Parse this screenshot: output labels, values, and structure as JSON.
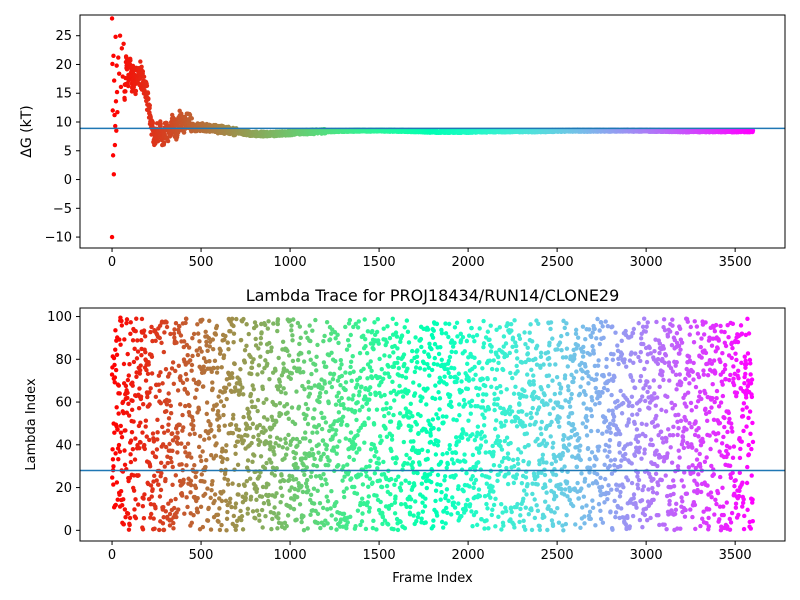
{
  "chart_data": [
    {
      "type": "scatter",
      "title": "",
      "xlabel": "",
      "ylabel": "ΔG (kT)",
      "xlim": [
        -180,
        3780
      ],
      "ylim": [
        -11.9,
        28.6
      ],
      "xticks": [
        "0",
        "500",
        "1000",
        "1500",
        "2000",
        "2500",
        "3000",
        "3500"
      ],
      "yticks": [
        "−10",
        "−5",
        "0",
        "5",
        "10",
        "15",
        "20",
        "25"
      ],
      "hline": 8.9,
      "hline_color": "#1f77b4",
      "colormap": "rainbow",
      "grid": false,
      "series": [
        {
          "points": [
            [
              0,
              28.0
            ],
            [
              0,
              -10.0
            ],
            [
              2,
              20.1
            ],
            [
              4,
              12.0
            ],
            [
              6,
              4.2
            ],
            [
              8,
              21.5
            ],
            [
              10,
              0.9
            ],
            [
              12,
              17.2
            ],
            [
              14,
              11.2
            ],
            [
              16,
              6.0
            ],
            [
              18,
              9.3
            ],
            [
              20,
              24.8
            ],
            [
              22,
              13.6
            ],
            [
              24,
              8.5
            ],
            [
              26,
              19.8
            ],
            [
              28,
              15.2
            ],
            [
              30,
              11.7
            ],
            [
              35,
              21.2
            ],
            [
              40,
              18.4
            ],
            [
              45,
              25.0
            ],
            [
              50,
              16.1
            ],
            [
              55,
              22.8
            ],
            [
              60,
              17.9
            ],
            [
              65,
              23.6
            ],
            [
              70,
              15.3
            ],
            [
              80,
              19.6
            ],
            [
              90,
              17.4
            ],
            [
              100,
              20.2
            ],
            [
              110,
              16.7
            ],
            [
              120,
              18.8
            ],
            [
              130,
              15.9
            ],
            [
              140,
              19.1
            ],
            [
              150,
              17.6
            ],
            [
              160,
              18.4
            ],
            [
              170,
              16.8
            ],
            [
              180,
              17.2
            ],
            [
              190,
              15.1
            ],
            [
              200,
              13.9
            ],
            [
              210,
              11.8
            ],
            [
              220,
              9.6
            ],
            [
              230,
              8.1
            ],
            [
              240,
              7.3
            ],
            [
              250,
              8.8
            ],
            [
              260,
              7.0
            ],
            [
              270,
              9.5
            ],
            [
              280,
              6.5
            ],
            [
              300,
              8.6
            ],
            [
              320,
              7.8
            ],
            [
              340,
              9.9
            ],
            [
              360,
              8.3
            ],
            [
              380,
              10.4
            ],
            [
              400,
              9.2
            ],
            [
              420,
              10.6
            ],
            [
              450,
              9.0
            ],
            [
              500,
              9.1
            ],
            [
              550,
              8.9
            ],
            [
              600,
              8.7
            ],
            [
              700,
              8.3
            ],
            [
              800,
              7.9
            ],
            [
              900,
              7.9
            ],
            [
              1000,
              8.1
            ],
            [
              1200,
              8.4
            ],
            [
              1400,
              8.5
            ],
            [
              1600,
              8.5
            ],
            [
              1800,
              8.3
            ],
            [
              2000,
              8.3
            ],
            [
              2200,
              8.4
            ],
            [
              2400,
              8.4
            ],
            [
              2600,
              8.5
            ],
            [
              2800,
              8.5
            ],
            [
              3000,
              8.5
            ],
            [
              3200,
              8.4
            ],
            [
              3400,
              8.4
            ],
            [
              3600,
              8.4
            ]
          ]
        }
      ]
    },
    {
      "type": "scatter",
      "title": "Lambda Trace for PROJ18434/RUN14/CLONE29",
      "xlabel": "Frame Index",
      "ylabel": "Lambda Index",
      "xlim": [
        -180,
        3780
      ],
      "ylim": [
        -5,
        104
      ],
      "xticks": [
        "0",
        "500",
        "1000",
        "1500",
        "2000",
        "2500",
        "3000",
        "3500"
      ],
      "yticks": [
        "0",
        "20",
        "40",
        "60",
        "80",
        "100"
      ],
      "hline": 28,
      "hline_color": "#1f77b4",
      "colormap": "rainbow",
      "grid": false,
      "series": [
        {
          "x_range": [
            0,
            3600
          ],
          "y_range": [
            0,
            99
          ],
          "note": ""
        }
      ]
    }
  ]
}
